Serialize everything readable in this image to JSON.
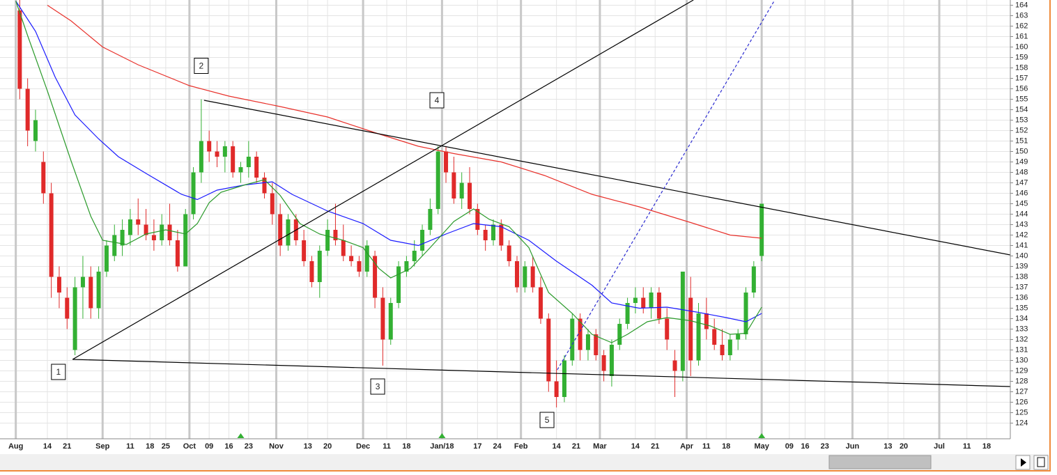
{
  "chart_data": {
    "type": "candlestick",
    "up_color": "#33b033",
    "down_color": "#e02a2a",
    "xlim": [
      -4,
      252
    ],
    "ylim": [
      122.5,
      164.5
    ],
    "grid": true,
    "xticks": [
      {
        "value": 0,
        "label": "Aug"
      },
      {
        "value": 8,
        "label": "14"
      },
      {
        "value": 13,
        "label": "21"
      },
      {
        "value": 22,
        "label": "Sep"
      },
      {
        "value": 29,
        "label": "11"
      },
      {
        "value": 34,
        "label": "18"
      },
      {
        "value": 38,
        "label": "25"
      },
      {
        "value": 44,
        "label": "Oct"
      },
      {
        "value": 49,
        "label": "09"
      },
      {
        "value": 54,
        "label": "16"
      },
      {
        "value": 59,
        "label": "23"
      },
      {
        "value": 66,
        "label": "Nov"
      },
      {
        "value": 74,
        "label": "13"
      },
      {
        "value": 79,
        "label": "20"
      },
      {
        "value": 88,
        "label": "Dec"
      },
      {
        "value": 94,
        "label": "11"
      },
      {
        "value": 99,
        "label": "18"
      },
      {
        "value": 108,
        "label": "Jan/18"
      },
      {
        "value": 117,
        "label": "17"
      },
      {
        "value": 122,
        "label": "24"
      },
      {
        "value": 128,
        "label": "Feb"
      },
      {
        "value": 137,
        "label": "14"
      },
      {
        "value": 142,
        "label": "21"
      },
      {
        "value": 148,
        "label": "Mar"
      },
      {
        "value": 157,
        "label": "14"
      },
      {
        "value": 162,
        "label": "21"
      },
      {
        "value": 170,
        "label": "Apr"
      },
      {
        "value": 175,
        "label": "11"
      },
      {
        "value": 180,
        "label": "18"
      },
      {
        "value": 189,
        "label": "May"
      },
      {
        "value": 196,
        "label": "09"
      },
      {
        "value": 200,
        "label": "16"
      },
      {
        "value": 205,
        "label": "23"
      },
      {
        "value": 212,
        "label": "Jun"
      },
      {
        "value": 221,
        "label": "13"
      },
      {
        "value": 225,
        "label": "20"
      },
      {
        "value": 234,
        "label": "Jul"
      },
      {
        "value": 241,
        "label": "11"
      },
      {
        "value": 246,
        "label": "18"
      }
    ],
    "yticks": [
      124,
      125,
      126,
      127,
      128,
      129,
      130,
      131,
      132,
      133,
      134,
      135,
      136,
      137,
      138,
      139,
      140,
      141,
      142,
      143,
      144,
      145,
      146,
      147,
      148,
      149,
      150,
      151,
      152,
      153,
      154,
      155,
      156,
      157,
      158,
      159,
      160,
      161,
      162,
      163,
      164
    ],
    "candles": {
      "x": [
        1,
        3,
        5,
        7,
        9,
        11,
        13,
        15,
        17,
        19,
        21,
        23,
        25,
        27,
        29,
        31,
        33,
        35,
        37,
        39,
        41,
        43,
        45,
        47,
        49,
        51,
        53,
        55,
        57,
        59,
        61,
        63,
        65,
        67,
        69,
        71,
        73,
        75,
        77,
        79,
        81,
        83,
        85,
        87,
        89,
        91,
        93,
        95,
        97,
        99,
        101,
        103,
        105,
        107,
        109,
        111,
        113,
        115,
        117,
        119,
        121,
        123,
        125,
        127,
        129,
        131,
        133,
        135,
        137,
        139,
        141,
        143,
        145,
        147,
        149,
        151,
        153,
        155,
        157,
        159,
        161,
        163,
        165,
        167,
        169,
        171,
        173,
        175,
        177,
        179,
        181,
        183,
        185,
        187,
        189
      ],
      "open": [
        163.5,
        156,
        151,
        149,
        146,
        138,
        136,
        131,
        137,
        138,
        135,
        138.5,
        140,
        141,
        142,
        143.5,
        143,
        142,
        141.5,
        143,
        141.5,
        139,
        144,
        148,
        151,
        150,
        149.5,
        150.5,
        148,
        148.5,
        149.5,
        147.5,
        146,
        144,
        141,
        143.5,
        141.5,
        139.5,
        137.5,
        140.5,
        142.5,
        141.5,
        140,
        139.5,
        138.5,
        140,
        136,
        132,
        135.5,
        138.5,
        139.5,
        140.5,
        142.5,
        144.5,
        150,
        148,
        145.5,
        147,
        144.5,
        142.5,
        141.5,
        143,
        141,
        139.5,
        137,
        139,
        137,
        134,
        128,
        126.5,
        130,
        134,
        131,
        132.5,
        130.5,
        128.5,
        131.5,
        133.5,
        135.5,
        136,
        135,
        136.5,
        134,
        130,
        129,
        136,
        130,
        134.5,
        133,
        131.5,
        130.5,
        132,
        132.5,
        136.5,
        140
      ],
      "high": [
        164.5,
        157,
        154,
        150,
        147,
        139,
        137,
        138,
        140,
        139,
        139,
        141.5,
        143,
        143.5,
        144.5,
        145.5,
        144.5,
        143.5,
        144,
        145,
        142.5,
        144.5,
        148.5,
        155,
        152,
        151,
        151,
        151,
        149,
        151,
        150,
        148,
        147,
        145,
        144,
        144,
        142.5,
        140,
        141,
        143.5,
        145,
        143,
        141,
        140,
        141.5,
        140.5,
        137,
        136,
        139.5,
        140,
        141.5,
        143,
        145.5,
        150.5,
        150.5,
        149.5,
        148,
        148.5,
        145,
        143,
        143.5,
        143.5,
        141.5,
        140,
        139.5,
        140,
        138,
        134.5,
        130,
        130.5,
        134.5,
        134.5,
        133,
        133,
        131,
        132,
        134,
        136,
        137,
        137,
        137,
        137,
        135,
        131,
        138.5,
        138,
        135.5,
        136,
        134,
        133,
        132.5,
        133,
        137,
        139.5,
        145
      ],
      "low": [
        155,
        150.5,
        150,
        145,
        136,
        135,
        133,
        130.5,
        134,
        134,
        134,
        138,
        139.5,
        140,
        141,
        142,
        141.5,
        140.5,
        141,
        141,
        138.5,
        139,
        143.5,
        147,
        149,
        148.5,
        148,
        147.5,
        147,
        147.5,
        147,
        145.5,
        143,
        140,
        140.5,
        141,
        139,
        137,
        136,
        140,
        141,
        139.5,
        139,
        138,
        138,
        135,
        129.5,
        131.5,
        135,
        138,
        139,
        140,
        142,
        144,
        147,
        145,
        144.5,
        144,
        142,
        140.5,
        141,
        140.5,
        139,
        136.5,
        136.5,
        136.5,
        133.5,
        127,
        125.5,
        126,
        129.5,
        130,
        130,
        130,
        128,
        127.5,
        131,
        133,
        134.5,
        134.5,
        134,
        133.5,
        131,
        126.5,
        128,
        128.5,
        129.5,
        132,
        131,
        130,
        130,
        131,
        132,
        136,
        139.5
      ],
      "close": [
        156,
        152,
        153,
        146,
        138,
        136.5,
        134,
        137,
        138,
        135,
        138.5,
        141,
        142,
        142.5,
        143.5,
        143,
        142,
        141.5,
        143,
        141.5,
        139,
        144,
        148,
        151,
        150,
        149.5,
        150.5,
        148,
        148.5,
        149.5,
        147.5,
        146,
        144,
        141,
        143.5,
        141.5,
        139.5,
        137.5,
        140.5,
        142.5,
        141.5,
        140,
        139.5,
        138.5,
        141,
        136,
        132,
        135.5,
        139,
        139.5,
        140.5,
        142.5,
        144.5,
        150,
        148,
        145.5,
        147,
        144.5,
        142.5,
        141.5,
        143,
        141,
        139.5,
        137,
        139,
        137,
        134,
        128,
        126.5,
        130,
        134,
        131,
        132.5,
        130.5,
        129,
        131.5,
        133.5,
        135.5,
        136,
        135,
        136.5,
        134,
        132,
        129,
        138.5,
        130,
        134.5,
        133,
        131.5,
        130.5,
        132,
        132.5,
        136.5,
        139,
        145
      ]
    },
    "series": [
      {
        "color": "#e8302a",
        "x": [
          8,
          14,
          22,
          31,
          44,
          54,
          67,
          79,
          91,
          102,
          111,
          123,
          134,
          146,
          158,
          171,
          181,
          189
        ],
        "values": [
          164,
          162.5,
          160,
          158.3,
          156.3,
          155.3,
          154.3,
          153.3,
          151.8,
          150.5,
          149.8,
          149,
          147.7,
          145.9,
          144.7,
          143.2,
          142,
          141.7
        ]
      },
      {
        "color": "#1a1aff",
        "x": [
          0,
          5,
          10,
          15,
          21,
          26,
          33,
          42,
          46,
          51,
          58,
          65,
          70,
          79,
          88,
          95,
          102,
          109,
          116,
          123,
          130,
          137,
          146,
          151,
          158,
          165,
          173,
          180,
          185,
          189
        ],
        "values": [
          164.4,
          161.5,
          157.1,
          153.5,
          151.2,
          149.5,
          147.9,
          145.9,
          145.4,
          146.3,
          146.8,
          147.1,
          145.9,
          144.3,
          143.1,
          141.5,
          141,
          142.1,
          143.1,
          142.8,
          141.5,
          139.5,
          137.2,
          135.5,
          135,
          135.1,
          134.6,
          134.1,
          133.7,
          134.5
        ]
      },
      {
        "color": "#2a9a2a",
        "x": [
          0,
          3,
          8,
          14,
          19,
          22,
          28,
          33,
          38,
          43,
          46,
          49,
          52,
          58,
          63,
          67,
          72,
          77,
          83,
          88,
          92,
          95,
          100,
          105,
          111,
          116,
          120,
          125,
          130,
          135,
          141,
          146,
          151,
          155,
          160,
          165,
          171,
          176,
          181,
          185,
          189
        ],
        "values": [
          164.4,
          161.1,
          155.8,
          149.1,
          143.8,
          141.5,
          141.1,
          142.1,
          142.5,
          142.1,
          143.1,
          145.1,
          146.1,
          146.8,
          147.3,
          145.8,
          143.1,
          142.1,
          141.5,
          140.8,
          138.8,
          137.9,
          138.8,
          140.8,
          143.3,
          144.5,
          143.5,
          142.8,
          140.8,
          136.5,
          134.5,
          132.5,
          131.7,
          132.5,
          133.7,
          134.1,
          133.8,
          133.3,
          132.5,
          132.6,
          135.1
        ]
      }
    ],
    "trend_lines": [
      {
        "color": "#000000",
        "dashed": false,
        "x": [
          14.4,
          252
        ],
        "y": [
          130.1,
          127.5
        ]
      },
      {
        "color": "#000000",
        "dashed": false,
        "x": [
          47.7,
          252
        ],
        "y": [
          154.9,
          140.1
        ]
      },
      {
        "color": "#000000",
        "dashed": false,
        "x": [
          14.4,
          171.7
        ],
        "y": [
          130.1,
          164.5
        ]
      },
      {
        "color": "#2a2ad0",
        "dashed": true,
        "x": [
          137.2,
          192.3
        ],
        "y": [
          129.1,
          164.5
        ]
      }
    ],
    "annotations": [
      {
        "text": "1",
        "x": 10.8,
        "y": 128.9
      },
      {
        "text": "2",
        "x": 47,
        "y": 158.2
      },
      {
        "text": "3",
        "x": 91.7,
        "y": 127.5
      },
      {
        "text": "4",
        "x": 106.7,
        "y": 154.9
      },
      {
        "text": "5",
        "x": 134.6,
        "y": 124.3
      }
    ],
    "event_markers": {
      "color": "#33b033",
      "x": [
        57,
        108,
        189
      ]
    }
  }
}
